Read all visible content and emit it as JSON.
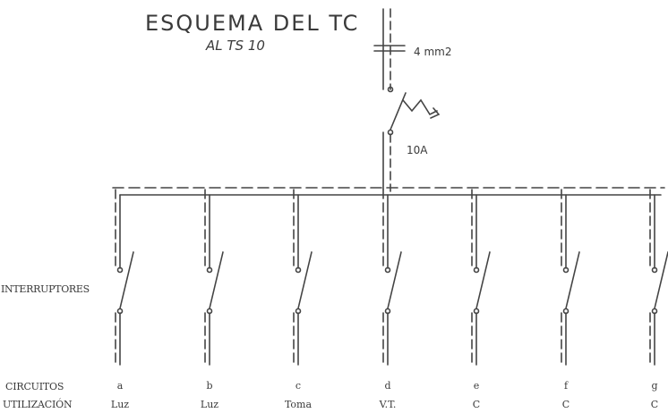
{
  "title": "ESQUEMA  DEL  TC",
  "subtitle": "AL TS 10",
  "main_feed": {
    "cable_label": "4 mm2",
    "breaker_rating": "10A"
  },
  "switches_label": "INTERRUPTORES",
  "rows": {
    "circuits_label": "CIRCUITOS",
    "usage_label": "UTILIZACIÓN"
  },
  "circuits": [
    {
      "id": "a",
      "use": "Luz"
    },
    {
      "id": "b",
      "use": "Luz"
    },
    {
      "id": "c",
      "use": "Toma"
    },
    {
      "id": "d",
      "use": "V.T."
    },
    {
      "id": "e",
      "use": "C"
    },
    {
      "id": "f",
      "use": "C"
    },
    {
      "id": "g",
      "use": "C"
    }
  ]
}
